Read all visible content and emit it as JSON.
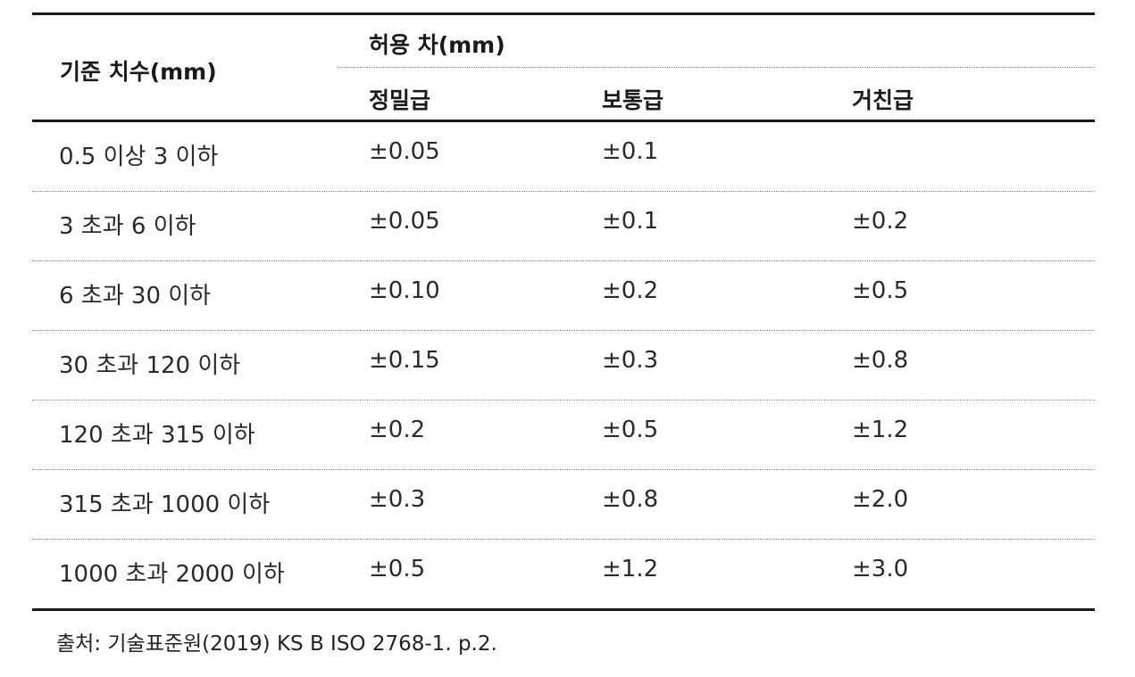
{
  "table": {
    "header": {
      "base_dim": "기준 치수(mm)",
      "tolerance_group": "허용 차(mm)",
      "grades": [
        "정밀급",
        "보통급",
        "거친급"
      ]
    },
    "rows": [
      {
        "range": "0.5 이상 3 이하",
        "fine": "±0.05",
        "medium": "±0.1",
        "coarse": ""
      },
      {
        "range": "3 초과 6 이하",
        "fine": "±0.05",
        "medium": "±0.1",
        "coarse": "±0.2"
      },
      {
        "range": "6 초과 30 이하",
        "fine": "±0.10",
        "medium": "±0.2",
        "coarse": "±0.5"
      },
      {
        "range": "30 초과 120 이하",
        "fine": "±0.15",
        "medium": "±0.3",
        "coarse": "±0.8"
      },
      {
        "range": "120 초과 315 이하",
        "fine": "±0.2",
        "medium": "±0.5",
        "coarse": "±1.2"
      },
      {
        "range": "315 초과 1000 이하",
        "fine": "±0.3",
        "medium": "±0.8",
        "coarse": "±2.0"
      },
      {
        "range": "1000 초과 2000 이하",
        "fine": "±0.5",
        "medium": "±1.2",
        "coarse": "±3.0"
      }
    ]
  },
  "source": "출처: 기술표준원(2019) KS B ISO 2768-1. p.2."
}
